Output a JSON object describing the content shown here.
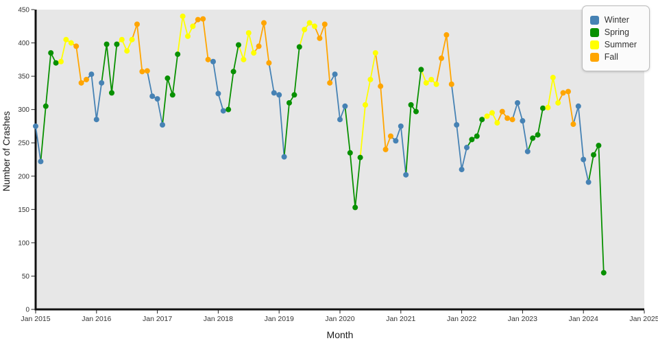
{
  "chart_data": {
    "type": "line",
    "title": "",
    "xlabel": "Month",
    "ylabel": "Number of Crashes",
    "x_start": "2015-01",
    "x_end_of_data": "2024-05",
    "x_range": [
      "Jan 2015",
      "Jan 2025"
    ],
    "x_tick_labels": [
      "Jan 2015",
      "Jan 2016",
      "Jan 2017",
      "Jan 2018",
      "Jan 2019",
      "Jan 2020",
      "Jan 2021",
      "Jan 2022",
      "Jan 2023",
      "Jan 2024",
      "Jan 2025"
    ],
    "y_ticks": [
      0,
      50,
      100,
      150,
      200,
      250,
      300,
      350,
      400,
      450
    ],
    "ylim": [
      0,
      450
    ],
    "grid": false,
    "plot_bg": "#e7e7e7",
    "legend_position": "top-right",
    "legend": [
      {
        "label": "Winter",
        "color": "#4682B4"
      },
      {
        "label": "Spring",
        "color": "#089000"
      },
      {
        "label": "Summer",
        "color": "#FFFF00"
      },
      {
        "label": "Fall",
        "color": "#FFA500"
      }
    ],
    "season_by_month": {
      "1": "Winter",
      "2": "Winter",
      "3": "Spring",
      "4": "Spring",
      "5": "Spring",
      "6": "Summer",
      "7": "Summer",
      "8": "Summer",
      "9": "Fall",
      "10": "Fall",
      "11": "Fall",
      "12": "Winter"
    },
    "values": [
      275,
      222,
      305,
      385,
      370,
      372,
      405,
      400,
      395,
      340,
      345,
      353,
      285,
      340,
      398,
      325,
      398,
      405,
      388,
      405,
      428,
      357,
      358,
      320,
      316,
      277,
      347,
      322,
      383,
      440,
      410,
      425,
      435,
      436,
      375,
      372,
      324,
      298,
      300,
      357,
      397,
      375,
      415,
      385,
      395,
      430,
      370,
      325,
      322,
      229,
      310,
      322,
      394,
      420,
      430,
      425,
      407,
      428,
      340,
      353,
      285,
      305,
      235,
      153,
      228,
      307,
      345,
      385,
      335,
      240,
      260,
      253,
      275,
      202,
      307,
      297,
      360,
      340,
      345,
      338,
      377,
      412,
      338,
      277,
      210,
      243,
      255,
      260,
      285,
      290,
      295,
      280,
      297,
      287,
      285,
      310,
      283,
      237,
      257,
      262,
      302,
      303,
      348,
      310,
      325,
      327,
      278,
      305,
      225,
      191,
      232,
      246,
      55
    ]
  }
}
